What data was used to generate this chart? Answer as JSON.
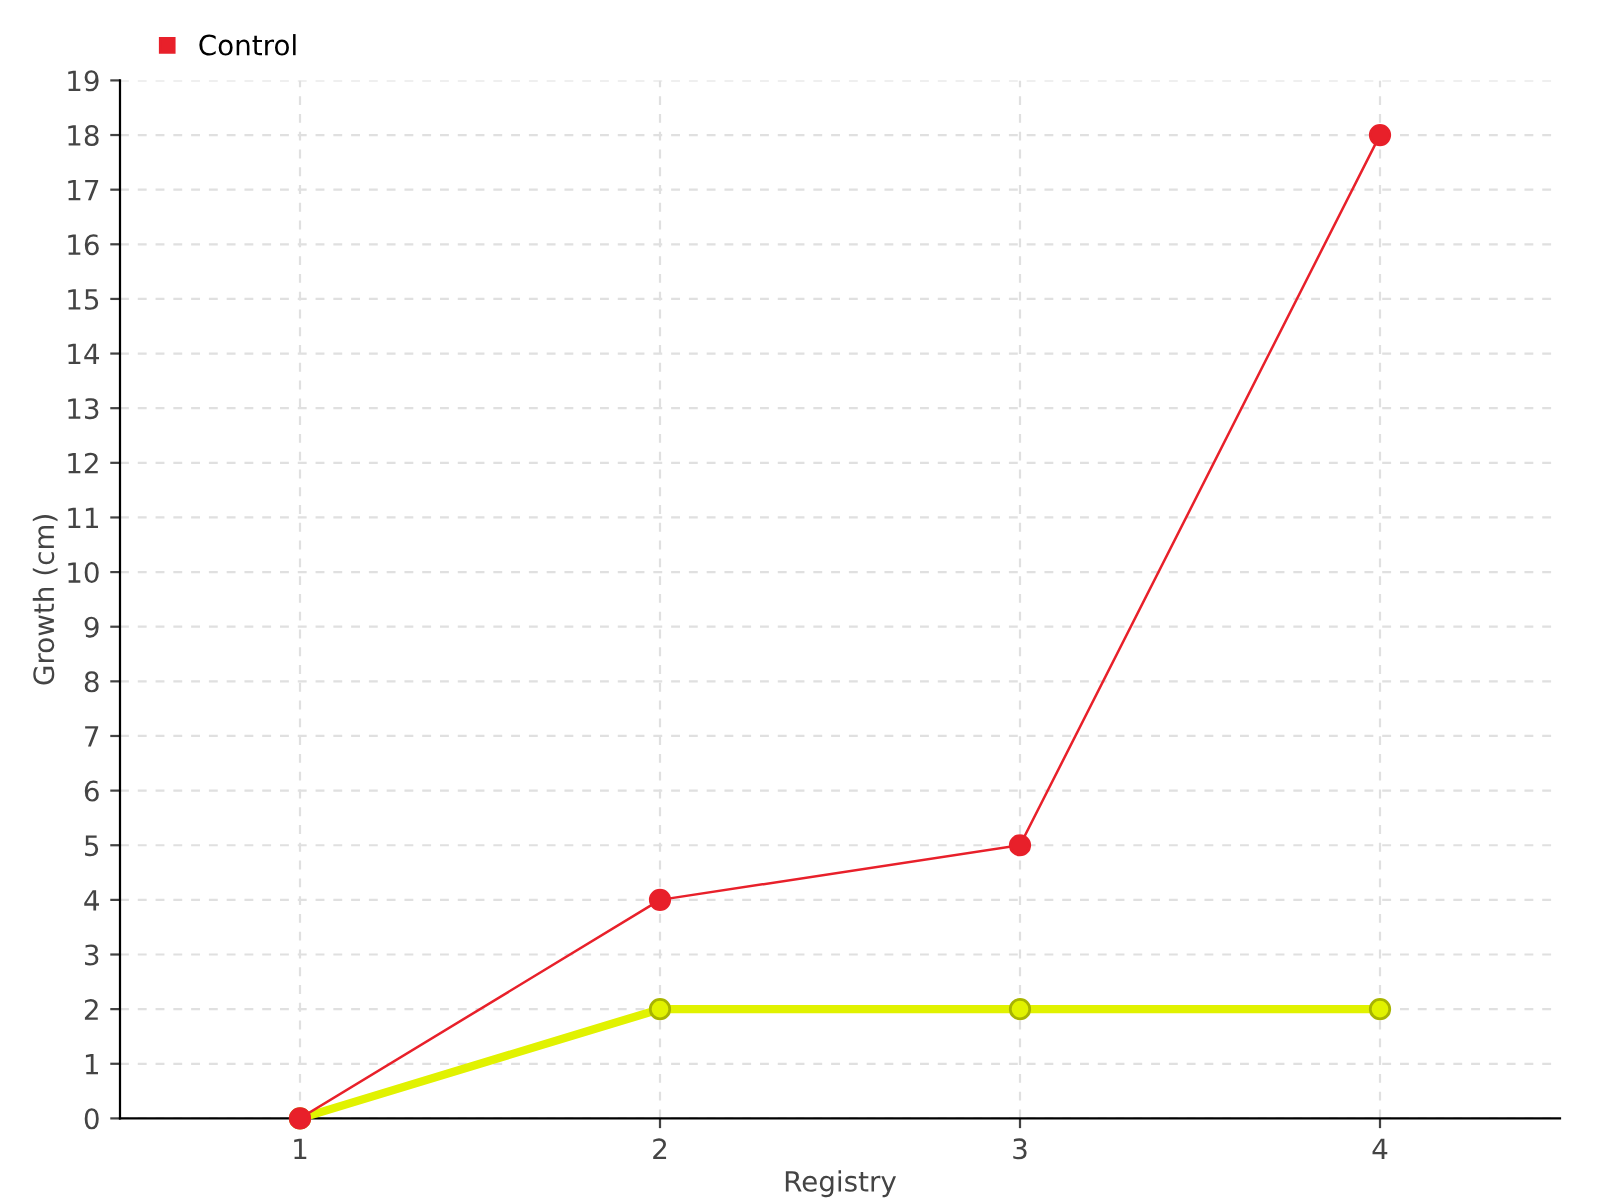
{
  "chart_data": {
    "type": "line",
    "xlabel": "Registry",
    "ylabel": "Growth (cm)",
    "x": [
      1,
      2,
      3,
      4
    ],
    "xlim": [
      0.5,
      4.5
    ],
    "xticks": [
      1,
      2,
      3,
      4
    ],
    "ylim": [
      0,
      19
    ],
    "yticks": [
      0,
      1,
      2,
      3,
      4,
      5,
      6,
      7,
      8,
      9,
      10,
      11,
      12,
      13,
      14,
      15,
      16,
      17,
      18,
      19
    ],
    "grid": true,
    "legend": "top left",
    "marker": "circle",
    "line_style": "solid",
    "series": [
      {
        "color": "#e1f200",
        "values": [
          0,
          2,
          2,
          2
        ]
      },
      {
        "name": "Control",
        "color": "#e8202a",
        "values": [
          0,
          4,
          5,
          18
        ]
      }
    ]
  }
}
